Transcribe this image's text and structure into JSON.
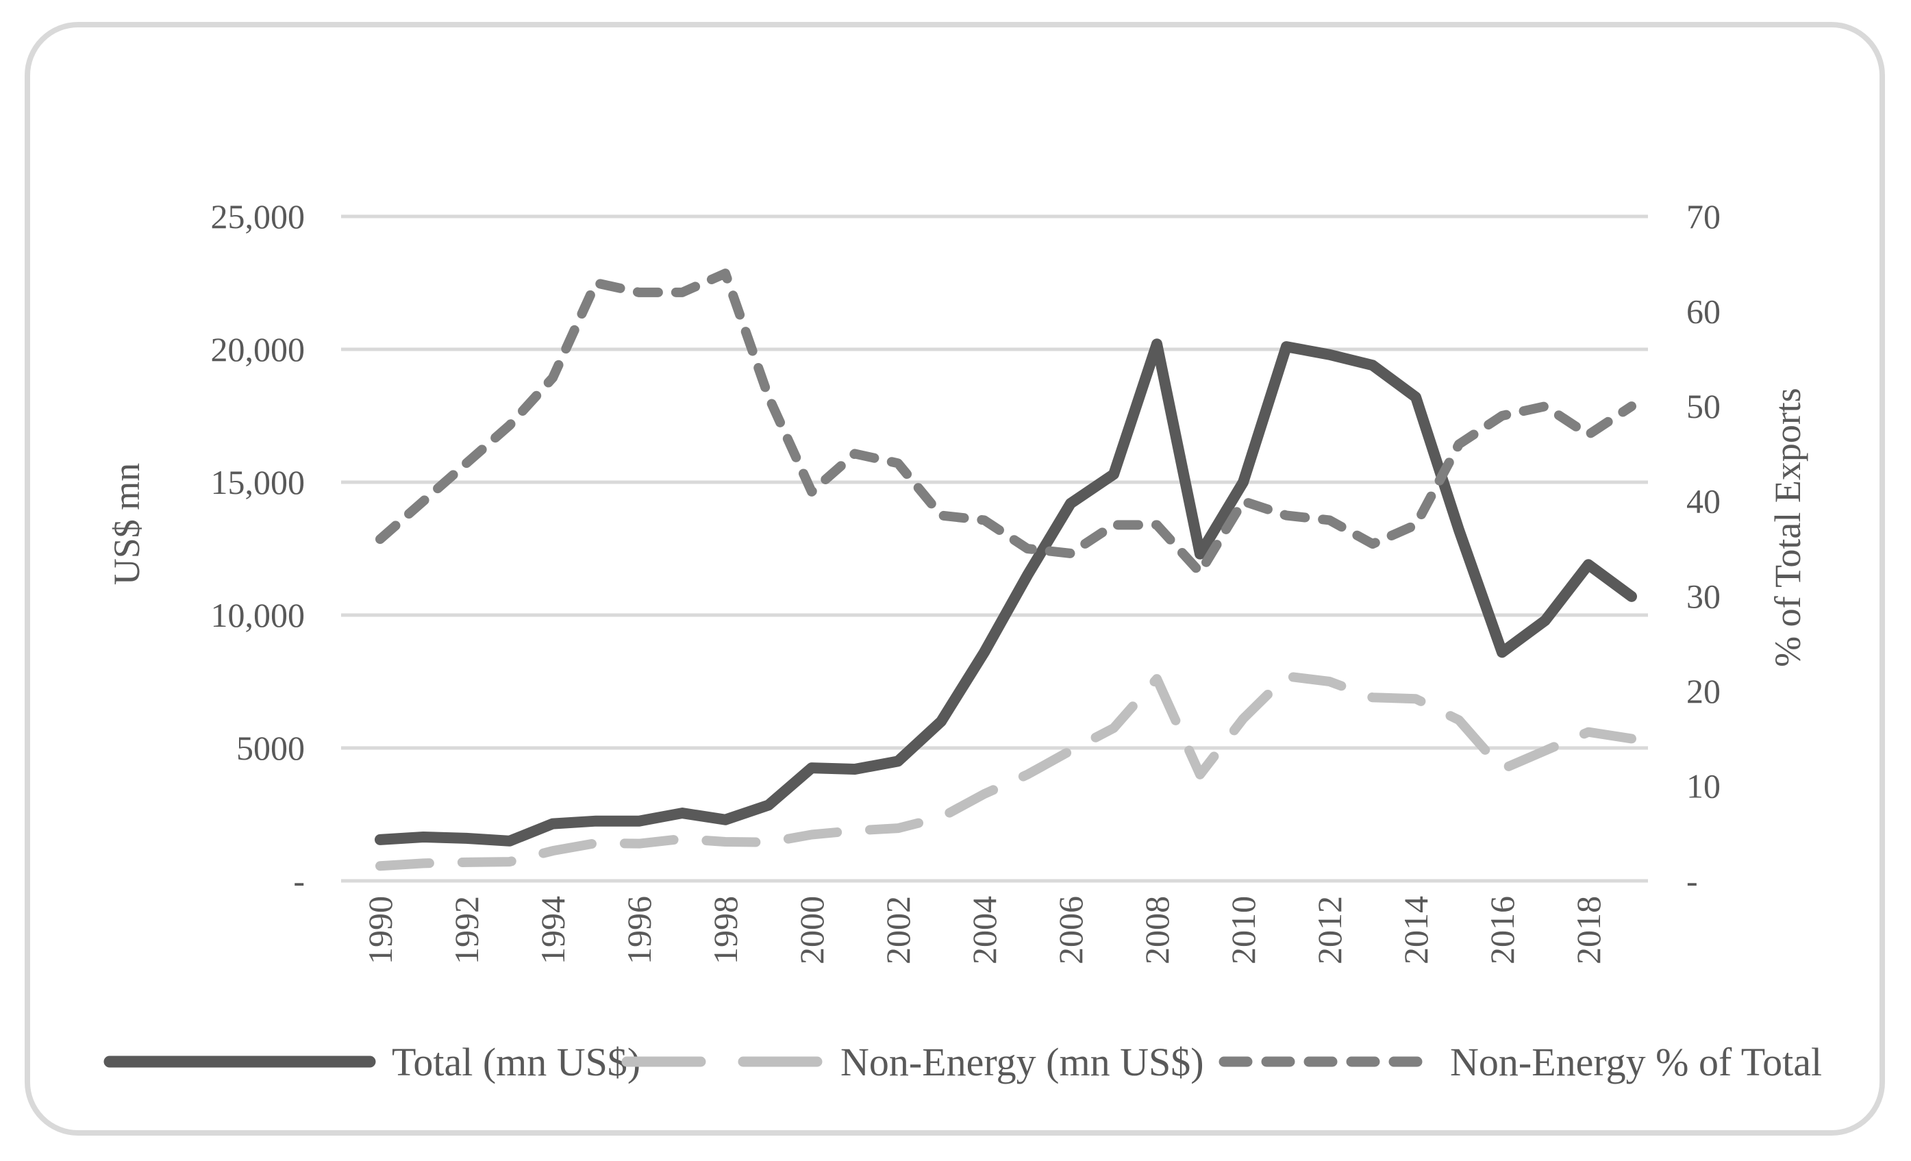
{
  "page": {
    "background": "#ffffff",
    "border_color": "#d9d9d9"
  },
  "chart_data": {
    "type": "line",
    "title": "",
    "ylabel_left": "US$ mn",
    "ylabel_right": "% of Total Exports",
    "grid": "horizontal-only",
    "grid_color": "#d9d9d9",
    "text_color": "#595959",
    "legend_position": "bottom",
    "x": [
      1990,
      1991,
      1992,
      1993,
      1994,
      1995,
      1996,
      1997,
      1998,
      1999,
      2000,
      2001,
      2002,
      2003,
      2004,
      2005,
      2006,
      2007,
      2008,
      2009,
      2010,
      2011,
      2012,
      2013,
      2014,
      2015,
      2016,
      2017,
      2018,
      2019
    ],
    "x_tick_labels": [
      "1990",
      "1992",
      "1994",
      "1996",
      "1998",
      "2000",
      "2002",
      "2004",
      "2006",
      "2008",
      "2010",
      "2012",
      "2014",
      "2016",
      "2018"
    ],
    "y_left": {
      "range": [
        0,
        25000
      ],
      "ticks": [
        {
          "label": "25,000",
          "value": 25000
        },
        {
          "label": "20,000",
          "value": 20000
        },
        {
          "label": "15,000",
          "value": 15000
        },
        {
          "label": "10,000",
          "value": 10000
        },
        {
          "label": "5000",
          "value": 5000
        },
        {
          "label": "-",
          "value": 0
        }
      ]
    },
    "y_right": {
      "range": [
        0,
        70
      ],
      "ticks": [
        {
          "label": "70",
          "value": 70
        },
        {
          "label": "60",
          "value": 60
        },
        {
          "label": "50",
          "value": 50
        },
        {
          "label": "40",
          "value": 40
        },
        {
          "label": "30",
          "value": 30
        },
        {
          "label": "20",
          "value": 20
        },
        {
          "label": "10",
          "value": 10
        },
        {
          "label": "-",
          "value": 0
        }
      ]
    },
    "series": [
      {
        "name": "Total (mn US$)",
        "axis": "left",
        "color": "#595959",
        "style": "solid",
        "stroke_width": 16,
        "values": [
          1550,
          1650,
          1600,
          1500,
          2150,
          2250,
          2250,
          2550,
          2300,
          2850,
          4250,
          4200,
          4500,
          6000,
          8600,
          11500,
          14200,
          15300,
          20200,
          12300,
          15000,
          20100,
          19800,
          19400,
          18200,
          13200,
          8600,
          9800,
          11900,
          10700
        ]
      },
      {
        "name": "Non-Energy (mn US$)",
        "axis": "left",
        "color": "#bfbfbf",
        "style": "long-dash",
        "stroke_width": 14,
        "values": [
          560,
          660,
          700,
          720,
          1130,
          1420,
          1400,
          1580,
          1470,
          1450,
          1740,
          1890,
          1980,
          2390,
          3270,
          4000,
          4900,
          5750,
          7600,
          4000,
          6100,
          7700,
          7500,
          6900,
          6850,
          6050,
          4200,
          4900,
          5600,
          5350
        ]
      },
      {
        "name": "Non-Energy % of Total",
        "axis": "right",
        "color": "#7f7f7f",
        "style": "short-dash",
        "stroke_width": 14,
        "values": [
          36,
          40,
          44,
          48,
          53,
          63,
          62,
          62,
          64,
          51,
          41,
          45,
          44,
          38.5,
          38,
          35,
          34.5,
          37.5,
          37.5,
          32.5,
          40,
          38.5,
          38,
          35.5,
          37.5,
          46,
          49,
          50,
          47,
          50
        ]
      }
    ]
  },
  "legend": {
    "items": [
      {
        "label": "Total (mn US$)"
      },
      {
        "label": "Non-Energy (mn US$)"
      },
      {
        "label": "Non-Energy % of Total"
      }
    ]
  }
}
